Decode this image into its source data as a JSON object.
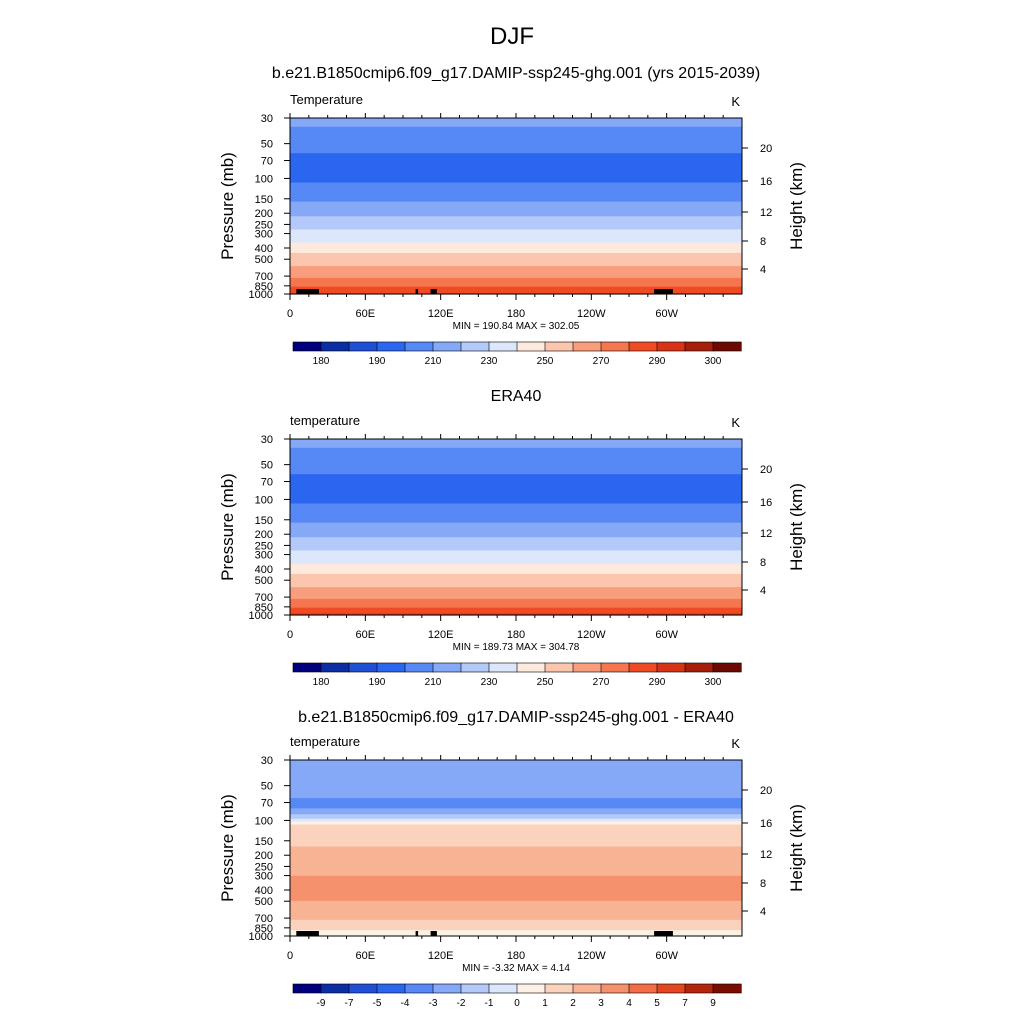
{
  "figure": {
    "season": "DJF"
  },
  "colors": {
    "temperature_palette": [
      "#00007f",
      "#0a2ea3",
      "#1f4fd4",
      "#2b66f0",
      "#5689f5",
      "#86a9f7",
      "#b3c9f9",
      "#dde7fb",
      "#fde9dd",
      "#fbc6ad",
      "#f99e7c",
      "#f5764f",
      "#ef4b25",
      "#d73316",
      "#a51f0b",
      "#6b0a00"
    ],
    "difference_palette": [
      "#00007f",
      "#0a2ea3",
      "#1f4fd4",
      "#2b66f0",
      "#5689f5",
      "#86a9f7",
      "#b3c9f9",
      "#dde7fb",
      "#fdf1e6",
      "#fbd3bd",
      "#f8b394",
      "#f5916c",
      "#f26c45",
      "#e6461f",
      "#b3260c",
      "#7a0d00"
    ],
    "topography": "#000000"
  },
  "chart_data": [
    {
      "type": "heatmap",
      "title": "b.e21.B1850cmip6.f09_g17.DAMIP-ssp245-ghg.001 (yrs 2015-2039)",
      "left_label": "Temperature",
      "units": "K",
      "ylabel": "Pressure (mb)",
      "y2label": "Height (km)",
      "x_ticks": [
        "0",
        "60E",
        "120E",
        "180",
        "120W",
        "60W"
      ],
      "x_tick_lon": [
        0,
        60,
        120,
        180,
        240,
        300
      ],
      "xlim": [
        0,
        360
      ],
      "y_ticks": [
        30,
        50,
        70,
        100,
        150,
        200,
        250,
        300,
        400,
        500,
        700,
        850,
        1000
      ],
      "ylim": [
        30,
        1000
      ],
      "y_scale": "log",
      "y2_ticks": [
        20,
        16,
        12,
        8,
        4
      ],
      "stats": "MIN = 190.84  MAX = 302.05",
      "min": 190.84,
      "max": 302.05,
      "colorbar_labels": [
        "180",
        "190",
        "210",
        "230",
        "250",
        "270",
        "290",
        "300"
      ],
      "level_profile": [
        {
          "p": 30,
          "t": 212
        },
        {
          "p": 45,
          "t": 207
        },
        {
          "p": 60,
          "t": 200
        },
        {
          "p": 100,
          "t": 198
        },
        {
          "p": 140,
          "t": 206
        },
        {
          "p": 170,
          "t": 212
        },
        {
          "p": 200,
          "t": 218
        },
        {
          "p": 250,
          "t": 225
        },
        {
          "p": 300,
          "t": 233
        },
        {
          "p": 400,
          "t": 245
        },
        {
          "p": 500,
          "t": 255
        },
        {
          "p": 700,
          "t": 268
        },
        {
          "p": 850,
          "t": 278
        },
        {
          "p": 1000,
          "t": 290
        }
      ],
      "topography_blocks": [
        [
          5,
          17
        ],
        [
          14,
          21
        ],
        [
          20,
          23
        ],
        [
          100,
          102
        ],
        [
          112,
          117
        ],
        [
          290,
          305
        ]
      ]
    },
    {
      "type": "heatmap",
      "title": "ERA40",
      "left_label": "temperature",
      "units": "K",
      "ylabel": "Pressure (mb)",
      "y2label": "Height (km)",
      "x_ticks": [
        "0",
        "60E",
        "120E",
        "180",
        "120W",
        "60W"
      ],
      "x_tick_lon": [
        0,
        60,
        120,
        180,
        240,
        300
      ],
      "xlim": [
        0,
        360
      ],
      "y_ticks": [
        30,
        50,
        70,
        100,
        150,
        200,
        250,
        300,
        400,
        500,
        700,
        850,
        1000
      ],
      "ylim": [
        30,
        1000
      ],
      "y_scale": "log",
      "y2_ticks": [
        20,
        16,
        12,
        8,
        4
      ],
      "stats": "MIN = 189.73  MAX = 304.78",
      "min": 189.73,
      "max": 304.78,
      "colorbar_labels": [
        "180",
        "190",
        "210",
        "230",
        "250",
        "270",
        "290",
        "300"
      ],
      "level_profile": [
        {
          "p": 30,
          "t": 212
        },
        {
          "p": 45,
          "t": 207
        },
        {
          "p": 60,
          "t": 200
        },
        {
          "p": 100,
          "t": 198
        },
        {
          "p": 140,
          "t": 206
        },
        {
          "p": 170,
          "t": 212
        },
        {
          "p": 200,
          "t": 218
        },
        {
          "p": 250,
          "t": 225
        },
        {
          "p": 300,
          "t": 233
        },
        {
          "p": 400,
          "t": 245
        },
        {
          "p": 500,
          "t": 255
        },
        {
          "p": 700,
          "t": 268
        },
        {
          "p": 850,
          "t": 278
        },
        {
          "p": 1000,
          "t": 292
        }
      ],
      "topography_blocks": []
    },
    {
      "type": "heatmap",
      "title": "b.e21.B1850cmip6.f09_g17.DAMIP-ssp245-ghg.001 - ERA40",
      "left_label": "temperature",
      "units": "K",
      "ylabel": "Pressure (mb)",
      "y2label": "Height (km)",
      "x_ticks": [
        "0",
        "60E",
        "120E",
        "180",
        "120W",
        "60W"
      ],
      "x_tick_lon": [
        0,
        60,
        120,
        180,
        240,
        300
      ],
      "xlim": [
        0,
        360
      ],
      "y_ticks": [
        30,
        50,
        70,
        100,
        150,
        200,
        250,
        300,
        400,
        500,
        700,
        850,
        1000
      ],
      "ylim": [
        30,
        1000
      ],
      "y_scale": "log",
      "y2_ticks": [
        20,
        16,
        12,
        8,
        4
      ],
      "stats": "MIN =  -3.32  MAX =   4.14",
      "min": -3.32,
      "max": 4.14,
      "colorbar_labels": [
        "-9",
        "-7",
        "-5",
        "-4",
        "-3",
        "-2",
        "-1",
        "0",
        "1",
        "2",
        "3",
        "4",
        "5",
        "7",
        "9"
      ],
      "level_profile": [
        {
          "p": 30,
          "t": -2.5
        },
        {
          "p": 55,
          "t": -2.5
        },
        {
          "p": 75,
          "t": -3.5
        },
        {
          "p": 95,
          "t": -1.5
        },
        {
          "p": 110,
          "t": 1.5
        },
        {
          "p": 170,
          "t": 2.0
        },
        {
          "p": 220,
          "t": 2.5
        },
        {
          "p": 300,
          "t": 3.0
        },
        {
          "p": 400,
          "t": 3.5
        },
        {
          "p": 500,
          "t": 3.0
        },
        {
          "p": 650,
          "t": 2.5
        },
        {
          "p": 800,
          "t": 1.5
        },
        {
          "p": 1000,
          "t": 0.5
        }
      ],
      "topography_blocks": [
        [
          5,
          17
        ],
        [
          14,
          21
        ],
        [
          20,
          23
        ],
        [
          100,
          102
        ],
        [
          112,
          117
        ],
        [
          290,
          305
        ]
      ]
    }
  ]
}
